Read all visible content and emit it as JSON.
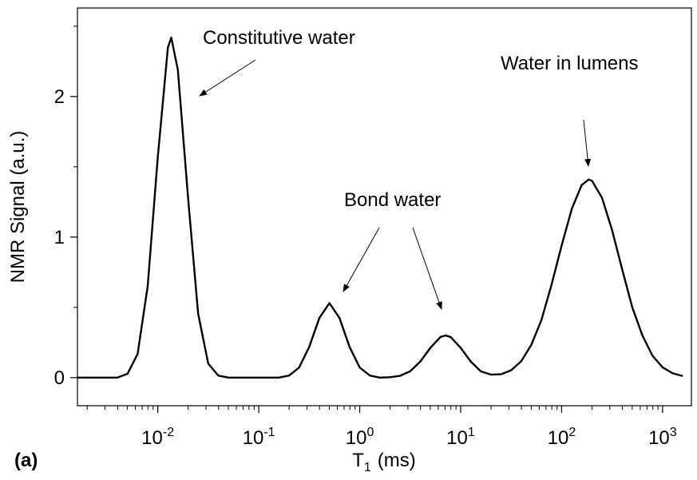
{
  "chart_data": {
    "type": "line",
    "panel_label": "(a)",
    "x_label": "T",
    "x_label_subscript": "1",
    "x_label_suffix": "(ms)",
    "y_label": "NMR Signal (a.u.)",
    "x_log": true,
    "xlim": [
      0.0016,
      1930
    ],
    "xticks": [
      {
        "value": 0.01,
        "label": "10",
        "exponent": "-2"
      },
      {
        "value": 0.1,
        "label": "10",
        "exponent": "-1"
      },
      {
        "value": 1,
        "label": "10",
        "exponent": "0"
      },
      {
        "value": 10,
        "label": "10",
        "exponent": "1"
      },
      {
        "value": 100,
        "label": "10",
        "exponent": "2"
      },
      {
        "value": 1000,
        "label": "10",
        "exponent": "3"
      }
    ],
    "xminorticks": [
      0.002,
      0.003,
      0.004,
      0.005,
      0.006,
      0.007,
      0.008,
      0.009,
      0.02,
      0.03,
      0.04,
      0.05,
      0.06,
      0.07,
      0.08,
      0.09,
      0.2,
      0.3,
      0.4,
      0.5,
      0.6,
      0.7,
      0.8,
      0.9,
      2,
      3,
      4,
      5,
      6,
      7,
      8,
      9,
      20,
      30,
      40,
      50,
      60,
      70,
      80,
      90,
      200,
      300,
      400,
      500,
      600,
      700,
      800,
      900
    ],
    "ylim": [
      -0.2,
      2.63
    ],
    "yticks": [
      0,
      1,
      2
    ],
    "yminorticks": [
      0.5,
      1.5,
      2.5
    ],
    "series": [
      {
        "name": "NMR signal",
        "color": "#000000",
        "x": [
          0.00158,
          0.00398,
          0.00501,
          0.00631,
          0.00794,
          0.01,
          0.0126,
          0.0136,
          0.0158,
          0.02,
          0.0251,
          0.0316,
          0.0398,
          0.0501,
          0.158,
          0.2,
          0.251,
          0.316,
          0.398,
          0.501,
          0.631,
          0.794,
          1,
          1.26,
          1.58,
          2,
          2.51,
          3.16,
          3.98,
          5.01,
          6.31,
          7.08,
          7.94,
          10,
          12.6,
          15.8,
          20,
          25.1,
          31.6,
          39.8,
          50.1,
          63.1,
          79.4,
          100,
          126,
          158,
          186,
          200,
          251,
          316,
          398,
          501,
          631,
          794,
          1000,
          1259,
          1585
        ],
        "values": [
          0,
          0,
          0.027,
          0.168,
          0.65,
          1.57,
          2.35,
          2.42,
          2.19,
          1.27,
          0.455,
          0.1,
          0.014,
          0,
          0,
          0.015,
          0.072,
          0.218,
          0.424,
          0.53,
          0.424,
          0.218,
          0.072,
          0.015,
          0,
          0.003,
          0.013,
          0.045,
          0.114,
          0.212,
          0.289,
          0.3,
          0.289,
          0.212,
          0.114,
          0.045,
          0.021,
          0.024,
          0.052,
          0.117,
          0.233,
          0.41,
          0.66,
          0.94,
          1.2,
          1.37,
          1.41,
          1.4,
          1.28,
          1.05,
          0.77,
          0.5,
          0.3,
          0.156,
          0.073,
          0.031,
          0.011
        ]
      }
    ],
    "annotations": [
      "Constitutive water",
      "Bond water",
      "Water in lumens"
    ]
  }
}
